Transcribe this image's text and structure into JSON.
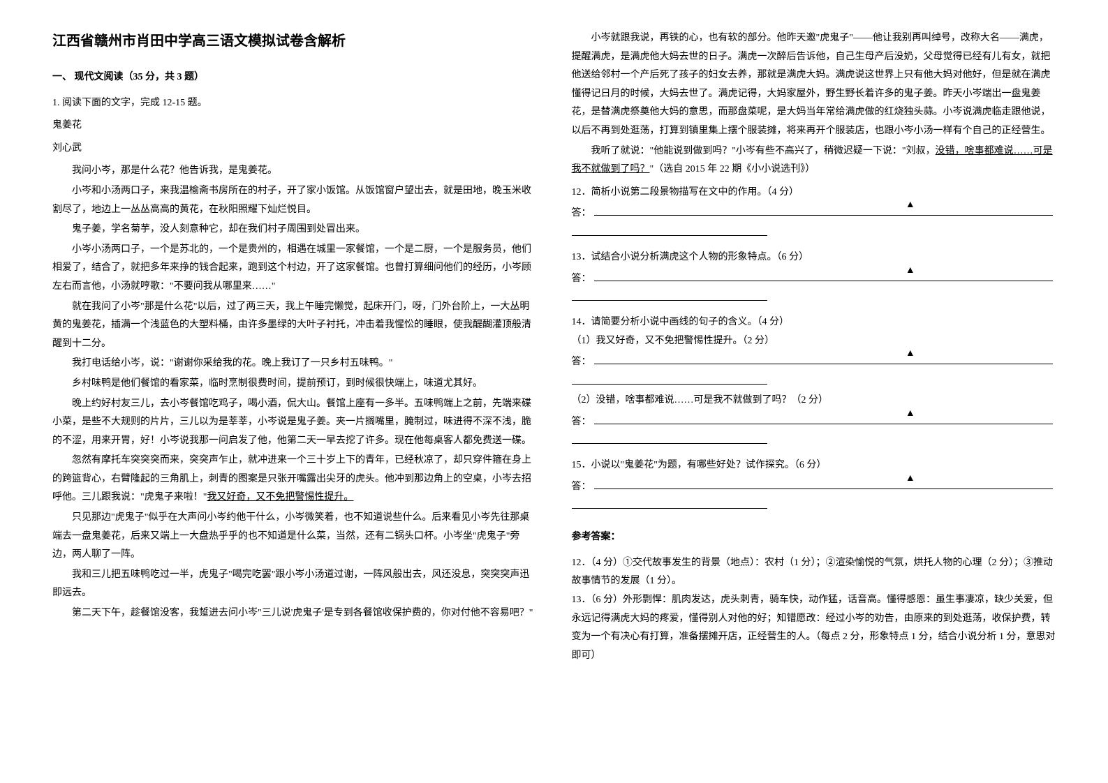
{
  "title": "江西省赣州市肖田中学高三语文模拟试卷含解析",
  "section_heading": "一、 现代文阅读（35 分，共 3 题）",
  "q1_meta": "1. 阅读下面的文字，完成 12-15 题。",
  "story_title": "鬼姜花",
  "author": "刘心武",
  "p1": "我问小岑，那是什么花？他告诉我，是鬼姜花。",
  "p2": "小岑和小汤两口子，来我温榆斋书房所在的村子，开了家小饭馆。从饭馆窗户望出去，就是田地，晚玉米收割尽了，地边上一丛丛高高的黄花，在秋阳照耀下灿烂悦目。",
  "p3": "鬼子姜，学名菊芋，没人刻意种它，却在我们村子周围到处冒出来。",
  "p4": "小岑小汤两口子，一个是苏北的，一个是贵州的，相遇在城里一家餐馆，一个是二厨，一个是服务员，他们相爱了，结合了，就把多年来挣的钱合起来，跑到这个村边，开了这家餐馆。也曾打算细问他们的经历，小岑顾左右而言他，小汤就哼歌：\"不要问我从哪里来……\"",
  "p5": "就在我问了小岑\"那是什么花\"以后，过了两三天，我上午睡完懒觉，起床开门，呀，门外台阶上，一大丛明黄的鬼姜花，插满一个浅蓝色的大塑料桶，由许多墨绿的大叶子衬托，冲击着我惺忪的睡眼，使我醍醐灌顶般清醒到十二分。",
  "p6": "我打电话给小岑，说：\"谢谢你采给我的花。晚上我订了一只乡村五味鸭。\"",
  "p7": "乡村味鸭是他们餐馆的看家菜，临时烹制很费时间，提前预订，到时候很快端上，味道尤其好。",
  "p8": "晚上约好村友三儿，去小岑餐馆吃鸡子，喝小酒，侃大山。餐馆上座有一多半。五味鸭端上之前，先端来碟小菜，是些不大规则的片片，三儿以为是莘莘，小岑说是鬼子姜。夹一片搁嘴里，腌制过，味进得不深不浅，脆的不涩，用来开胃，好！小岑说我那一问启发了他，他第二天一早去挖了许多。现在他每桌客人都免费送一碟。",
  "p9_a": "忽然有摩托车突突突而来，突突声乍止，就冲进来一个三十岁上下的青年，已经秋凉了，却只穿件箍在身上的跨篮背心，右臂隆起的三角肌上，刺青的图案是只张开嘴露出尖牙的虎头。他冲到那边角上的空桌，小岑去招呼他。三儿跟我说：\"虎鬼子来啦！\"",
  "p9_b": "我又好奇，又不免把警惕性提升。",
  "p10": "只见那边\"虎鬼子\"似乎在大声问小岑约他干什么，小岑微笑着，也不知道说些什么。后来看见小岑先往那桌端去一盘鬼姜花，后来又端上一大盘热乎乎的也不知道是什么菜，当然，还有二锅头口杯。小岑坐\"虎鬼子\"旁边，两人聊了一阵。",
  "p11": "我和三儿把五味鸭吃过一半，虎鬼子\"喝完吃罢\"跟小岑小汤道过谢，一阵风般出去，风还没息，突突突声迅即远去。",
  "p12": "第二天下午，趁餐馆没客，我踅进去问小岑\"三儿说'虎鬼子'是专到各餐馆收保护费的，你对付他不容易吧？\"",
  "p13": "小岑就跟我说，再铁的心，也有软的部分。他昨天邀\"虎鬼子\"——他让我别再叫绰号，改称大名——满虎，提醒满虎，是满虎他大妈去世的日子。满虎一次醉后告诉他，自己生母产后没奶，父母觉得已经有儿有女，就把他送给邻村一个产后死了孩子的妇女去养，那就是满虎大妈。满虎说这世界上只有他大妈对他好，但是就在满虎懂得记日月的时候，大妈去世了。满虎记得，大妈家屋外，野生野长着许多的鬼子姜。昨天小岑端出一盘鬼姜花，是替满虎祭奠他大妈的意思，而那盘菜呢，是大妈当年常给满虎做的红烧独头蒜。小岑说满虎临走跟他说，以后不再到处逛荡，打算到镇里集上摆个服装摊，将来再开个服装店，也跟小岑小汤一样有个自己的正经营生。",
  "p14_a": "我听了就说：\"他能说到做到吗？\"小岑有些不高兴了，稍微迟疑一下说：\"刘叔，",
  "p14_b": "没错，啥事都难说……可是我不就做到了吗？",
  "p14_c": "\"（选自 2015 年 22 期《小小说选刊》）",
  "q12": "12．简析小说第二段景物描写在文中的作用。（4 分）",
  "q13": "13．试结合小说分析满虎这个人物的形象特点。（6 分）",
  "q14": "14．请简要分析小说中画线的句子的含义。（4 分）",
  "q14_1": "（1）我又好奇，又不免把警惕性提升。（2 分）",
  "q14_2": "（2）没错，啥事都难说……可是我不就做到了吗？（2 分）",
  "q15": "15．小说以\"鬼姜花\"为题，有哪些好处？试作探究。（6 分）",
  "ans_label": "答：",
  "triangle": "▲",
  "ref_heading": "参考答案：",
  "a12": "12．（4 分）①交代故事发生的背景（地点）：农村（1 分）；②渲染愉悦的气氛，烘托人物的心理（2 分）；③推动故事情节的发展（1 分）。",
  "a13": "13．（6 分）外形剽悍：肌肉发达，虎头刺青，骑车快，动作猛，话音高。懂得感恩：虽生事凄凉，缺少关爱，但永远记得满虎大妈的疼爱，懂得别人对他的好；知错愿改：经过小岑的劝告，由原来的到处逛荡，收保护费，转变为一个有决心有打算，准备摆摊开店，正经营生的人。（每点 2 分，形象特点 1 分，结合小说分析 1 分，意思对即可）"
}
